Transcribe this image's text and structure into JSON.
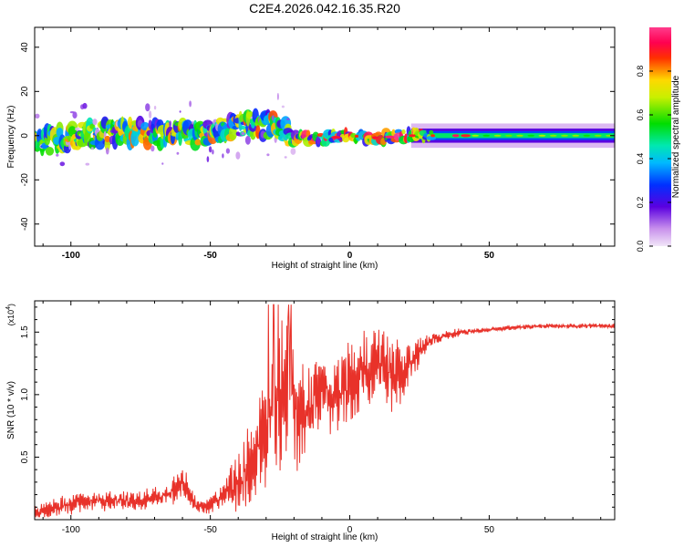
{
  "title": "C2E4.2026.042.16.35.R20",
  "colors": {
    "trace": "#e8322a",
    "axis": "#000000",
    "background": "#ffffff"
  },
  "chart_data": [
    {
      "type": "heatmap",
      "name": "spectrogram",
      "xlabel": "Height of straight line (km)",
      "ylabel": "Frequency (Hz)",
      "xlim": [
        -113,
        95
      ],
      "ylim": [
        -50,
        49
      ],
      "xticks": [
        -100,
        -50,
        0,
        50
      ],
      "xtick_labels": [
        "-100",
        "-50",
        "0",
        "50"
      ],
      "yticks": [
        -40,
        -20,
        0,
        20,
        40
      ],
      "ytick_labels": [
        "-40",
        "-20",
        "0",
        "20",
        "40"
      ],
      "ridge": {
        "x": [
          -113,
          -100,
          -90,
          -80,
          -70,
          -60,
          -50,
          -40,
          -30,
          -25,
          -22,
          -20,
          -10,
          0,
          10,
          20,
          30,
          50,
          70,
          95
        ],
        "y": [
          -3,
          -1,
          1,
          2,
          1,
          1,
          1.5,
          4,
          5,
          4,
          0,
          -1,
          -1.5,
          0,
          -1,
          0,
          0,
          0,
          0,
          0
        ],
        "band_halfwidth": 4
      },
      "colorbar": {
        "label": "Normalized spectral amplitude",
        "range": [
          0,
          1
        ],
        "ticks": [
          0.0,
          0.2,
          0.4,
          0.6,
          0.8
        ],
        "tick_labels": [
          "0.0",
          "0.2",
          "0.4",
          "0.6",
          "0.8"
        ]
      }
    },
    {
      "type": "line",
      "name": "snr",
      "xlabel": "Height of straight line (km)",
      "ylabel": "SNR (10 * v/v)",
      "exponent_label": "(x10",
      "exponent_power": "4",
      "exponent_close": ")",
      "xlim": [
        -113,
        95
      ],
      "ylim": [
        0,
        1.75
      ],
      "xticks": [
        -100,
        -50,
        0,
        50
      ],
      "xtick_labels": [
        "-100",
        "-50",
        "0",
        "50"
      ],
      "yticks": [
        0.5,
        1.0,
        1.5
      ],
      "ytick_labels": [
        "0.5",
        "1.0",
        "1.5"
      ],
      "series": [
        {
          "name": "SNR",
          "x": [
            -113,
            -105,
            -95,
            -85,
            -75,
            -65,
            -60,
            -55,
            -50,
            -45,
            -40,
            -35,
            -30,
            -25,
            -22,
            -20,
            -15,
            -10,
            -5,
            0,
            5,
            10,
            15,
            20,
            25,
            30,
            40,
            50,
            60,
            70,
            80,
            95
          ],
          "y": [
            0.05,
            0.1,
            0.15,
            0.15,
            0.15,
            0.2,
            0.3,
            0.1,
            0.12,
            0.2,
            0.3,
            0.45,
            0.7,
            1.0,
            1.2,
            0.8,
            0.9,
            1.05,
            0.95,
            1.1,
            1.2,
            1.25,
            1.15,
            1.2,
            1.35,
            1.45,
            1.5,
            1.52,
            1.54,
            1.55,
            1.55,
            1.55
          ],
          "noise": [
            0.06,
            0.08,
            0.08,
            0.08,
            0.08,
            0.1,
            0.15,
            0.06,
            0.08,
            0.12,
            0.25,
            0.35,
            0.5,
            0.6,
            0.7,
            0.6,
            0.35,
            0.3,
            0.3,
            0.35,
            0.35,
            0.3,
            0.3,
            0.25,
            0.12,
            0.05,
            0.03,
            0.02,
            0.02,
            0.02,
            0.02,
            0.02
          ]
        }
      ]
    }
  ]
}
